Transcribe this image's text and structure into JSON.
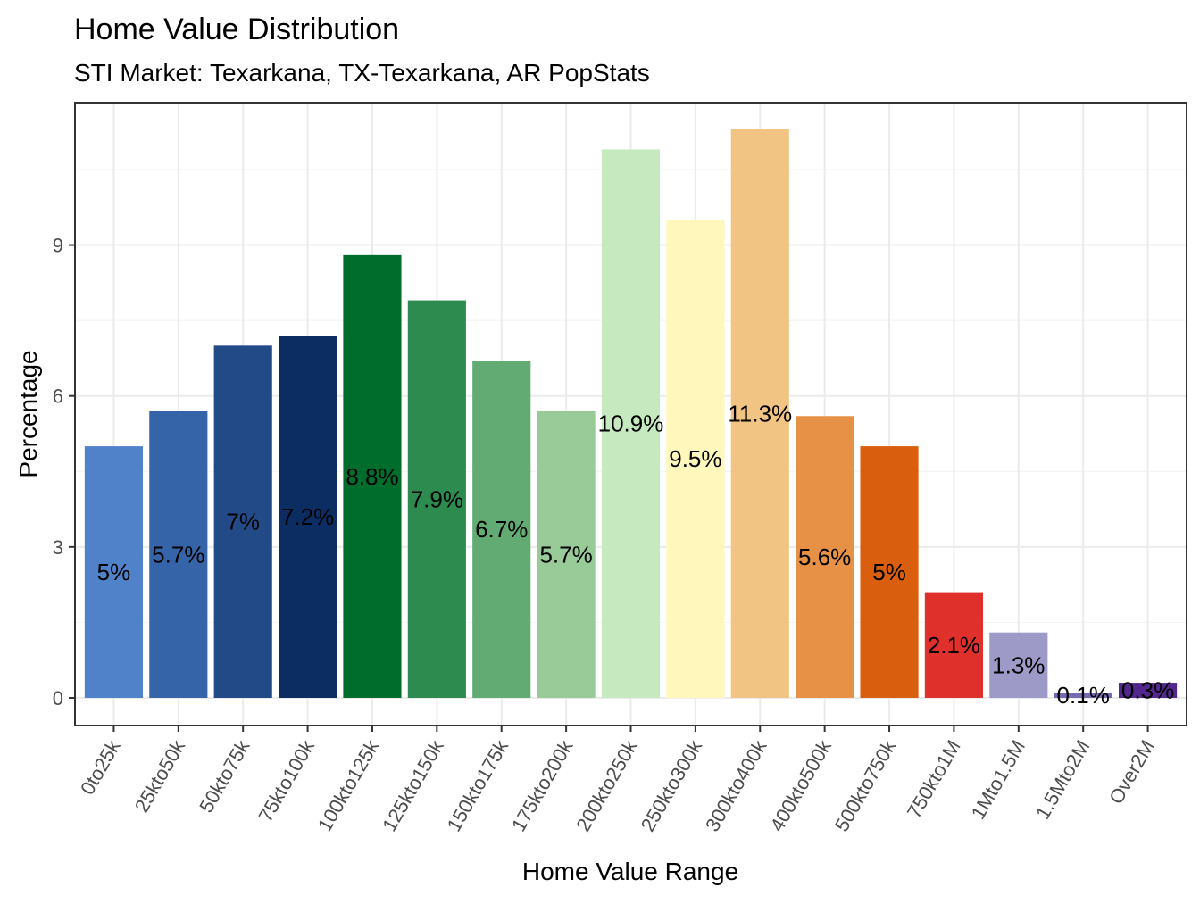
{
  "chart_data": {
    "type": "bar",
    "title": "Home Value Distribution",
    "subtitle": "STI Market: Texarkana, TX-Texarkana, AR PopStats",
    "xlabel": "Home Value Range",
    "ylabel": "Percentage",
    "ylim": [
      -0.55,
      11.83
    ],
    "yticks": [
      0,
      3,
      6,
      9
    ],
    "grid": true,
    "categories": [
      "0to25k",
      "25kto50k",
      "50kto75k",
      "75kto100k",
      "100kto125k",
      "125kto150k",
      "150kto175k",
      "175kto200k",
      "200kto250k",
      "250kto300k",
      "300kto400k",
      "400kto500k",
      "500kto750k",
      "750kto1M",
      "1Mto1.5M",
      "1.5Mto2M",
      "Over2M"
    ],
    "values": [
      5,
      5.7,
      7,
      7.2,
      8.8,
      7.9,
      6.7,
      5.7,
      10.9,
      9.5,
      11.3,
      5.6,
      5,
      2.1,
      1.3,
      0.1,
      0.3
    ],
    "labels": [
      "5%",
      "5.7%",
      "7%",
      "7.2%",
      "8.8%",
      "7.9%",
      "6.7%",
      "5.7%",
      "10.9%",
      "9.5%",
      "11.3%",
      "5.6%",
      "5%",
      "2.1%",
      "1.3%",
      "0.1%",
      "0.3%"
    ],
    "colors": [
      "#5082C9",
      "#3564A8",
      "#214A87",
      "#0B2D62",
      "#006D2C",
      "#2E8B50",
      "#62AB73",
      "#98CB98",
      "#C7E9C0",
      "#FFF7BC",
      "#F1C483",
      "#E69146",
      "#D95F0E",
      "#E0302B",
      "#9E9AC8",
      "#756BB1",
      "#54278F"
    ]
  }
}
